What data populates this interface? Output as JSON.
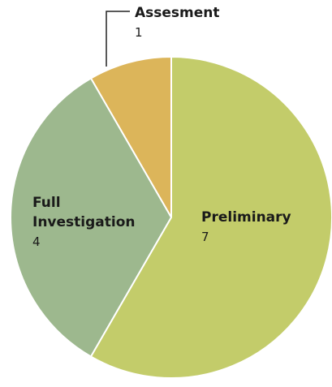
{
  "chart_data": {
    "type": "pie",
    "categories": [
      "Preliminary",
      "Full Investigation",
      "Assesment"
    ],
    "values": [
      7,
      4,
      1
    ],
    "colors": [
      "#c3cc6a",
      "#9db88e",
      "#dcb55a"
    ]
  }
}
